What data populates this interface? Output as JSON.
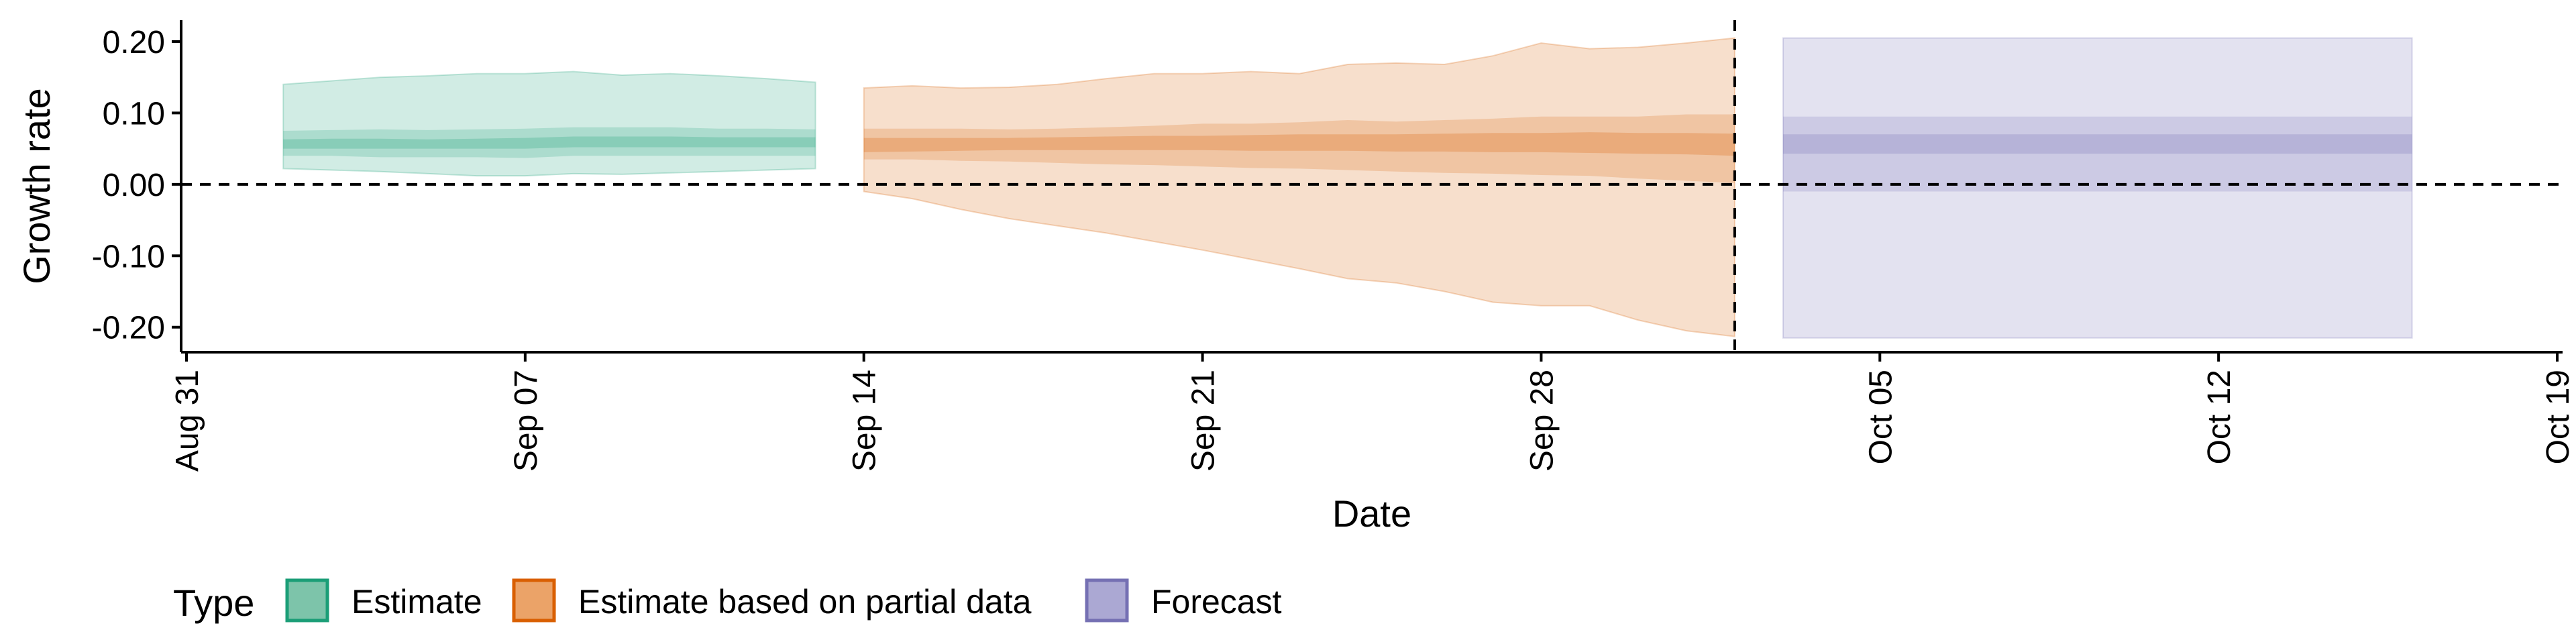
{
  "chart_data": {
    "type": "area",
    "xlabel": "Date",
    "ylabel": "Growth rate",
    "x_range": [
      "2020-08-31",
      "2020-10-19"
    ],
    "ylim": [
      -0.235,
      0.23
    ],
    "y_ticks": [
      0.2,
      0.1,
      0.0,
      -0.1,
      -0.2
    ],
    "y_tick_labels": [
      "0.20",
      "0.10",
      "0.00",
      "-0.10",
      "-0.20"
    ],
    "x_ticks": [
      "2020-08-31",
      "2020-09-07",
      "2020-09-14",
      "2020-09-21",
      "2020-09-28",
      "2020-10-05",
      "2020-10-12",
      "2020-10-19"
    ],
    "x_tick_labels": [
      "Aug 31",
      "Sep 07",
      "Sep 14",
      "Sep 21",
      "Sep 28",
      "Oct 05",
      "Oct 12",
      "Oct 19"
    ],
    "reference_lines": {
      "horizontal_y": 0.0,
      "vertical_date": "2020-10-02"
    },
    "grid": false,
    "legend": {
      "position": "bottom-left",
      "title": "Type",
      "entries": [
        {
          "label": "Estimate",
          "fill": "#7dc4aa",
          "stroke": "#1b9e77"
        },
        {
          "label": "Estimate based on partial data",
          "fill": "#eba368",
          "stroke": "#d95f02"
        },
        {
          "label": "Forecast",
          "fill": "#aba8d3",
          "stroke": "#7570b3"
        }
      ]
    },
    "series": [
      {
        "name": "Estimate",
        "color": "#1b9e77",
        "dates": [
          "2020-09-02",
          "2020-09-03",
          "2020-09-04",
          "2020-09-05",
          "2020-09-06",
          "2020-09-07",
          "2020-09-08",
          "2020-09-09",
          "2020-09-10",
          "2020-09-11",
          "2020-09-12",
          "2020-09-13"
        ],
        "outer_upper": [
          0.14,
          0.145,
          0.15,
          0.152,
          0.155,
          0.155,
          0.158,
          0.153,
          0.155,
          0.152,
          0.148,
          0.143
        ],
        "outer_lower": [
          0.022,
          0.02,
          0.018,
          0.015,
          0.012,
          0.012,
          0.015,
          0.014,
          0.016,
          0.018,
          0.02,
          0.022
        ],
        "mid_upper": [
          0.075,
          0.076,
          0.077,
          0.076,
          0.077,
          0.078,
          0.08,
          0.08,
          0.08,
          0.078,
          0.078,
          0.077
        ],
        "mid_lower": [
          0.04,
          0.04,
          0.038,
          0.038,
          0.038,
          0.037,
          0.04,
          0.04,
          0.04,
          0.04,
          0.04,
          0.04
        ],
        "inner_upper": [
          0.063,
          0.064,
          0.064,
          0.063,
          0.064,
          0.065,
          0.067,
          0.067,
          0.067,
          0.066,
          0.066,
          0.066
        ],
        "inner_lower": [
          0.05,
          0.05,
          0.05,
          0.05,
          0.05,
          0.05,
          0.052,
          0.052,
          0.052,
          0.052,
          0.052,
          0.052
        ]
      },
      {
        "name": "Estimate based on partial data",
        "color": "#d95f02",
        "dates": [
          "2020-09-14",
          "2020-09-15",
          "2020-09-16",
          "2020-09-17",
          "2020-09-18",
          "2020-09-19",
          "2020-09-20",
          "2020-09-21",
          "2020-09-22",
          "2020-09-23",
          "2020-09-24",
          "2020-09-25",
          "2020-09-26",
          "2020-09-27",
          "2020-09-28",
          "2020-09-29",
          "2020-09-30",
          "2020-10-01",
          "2020-10-02"
        ],
        "outer_upper": [
          0.135,
          0.138,
          0.135,
          0.136,
          0.14,
          0.148,
          0.155,
          0.155,
          0.158,
          0.155,
          0.168,
          0.17,
          0.168,
          0.18,
          0.198,
          0.19,
          0.192,
          0.198,
          0.205
        ],
        "outer_lower": [
          -0.01,
          -0.02,
          -0.035,
          -0.048,
          -0.058,
          -0.068,
          -0.08,
          -0.092,
          -0.105,
          -0.118,
          -0.132,
          -0.138,
          -0.15,
          -0.165,
          -0.17,
          -0.17,
          -0.19,
          -0.205,
          -0.213
        ],
        "mid_upper": [
          0.078,
          0.078,
          0.078,
          0.077,
          0.078,
          0.08,
          0.082,
          0.085,
          0.085,
          0.087,
          0.09,
          0.088,
          0.09,
          0.092,
          0.095,
          0.095,
          0.095,
          0.098,
          0.098
        ],
        "mid_lower": [
          0.035,
          0.035,
          0.033,
          0.032,
          0.03,
          0.028,
          0.027,
          0.025,
          0.023,
          0.022,
          0.02,
          0.018,
          0.016,
          0.015,
          0.013,
          0.012,
          0.008,
          0.005,
          0.002
        ],
        "inner_upper": [
          0.065,
          0.065,
          0.065,
          0.065,
          0.066,
          0.067,
          0.068,
          0.068,
          0.069,
          0.07,
          0.07,
          0.07,
          0.071,
          0.072,
          0.072,
          0.073,
          0.072,
          0.072,
          0.071
        ],
        "inner_lower": [
          0.045,
          0.046,
          0.047,
          0.048,
          0.048,
          0.048,
          0.048,
          0.048,
          0.047,
          0.047,
          0.047,
          0.046,
          0.046,
          0.045,
          0.045,
          0.044,
          0.043,
          0.042,
          0.04
        ]
      },
      {
        "name": "Forecast",
        "color": "#7570b3",
        "dates": [
          "2020-10-03",
          "2020-10-16"
        ],
        "outer_upper": [
          0.205,
          0.205
        ],
        "outer_lower": [
          -0.215,
          -0.215
        ],
        "mid_upper": [
          0.095,
          0.095
        ],
        "mid_lower": [
          -0.01,
          -0.01
        ],
        "inner_upper": [
          0.07,
          0.07
        ],
        "inner_lower": [
          0.043,
          0.043
        ]
      }
    ]
  }
}
